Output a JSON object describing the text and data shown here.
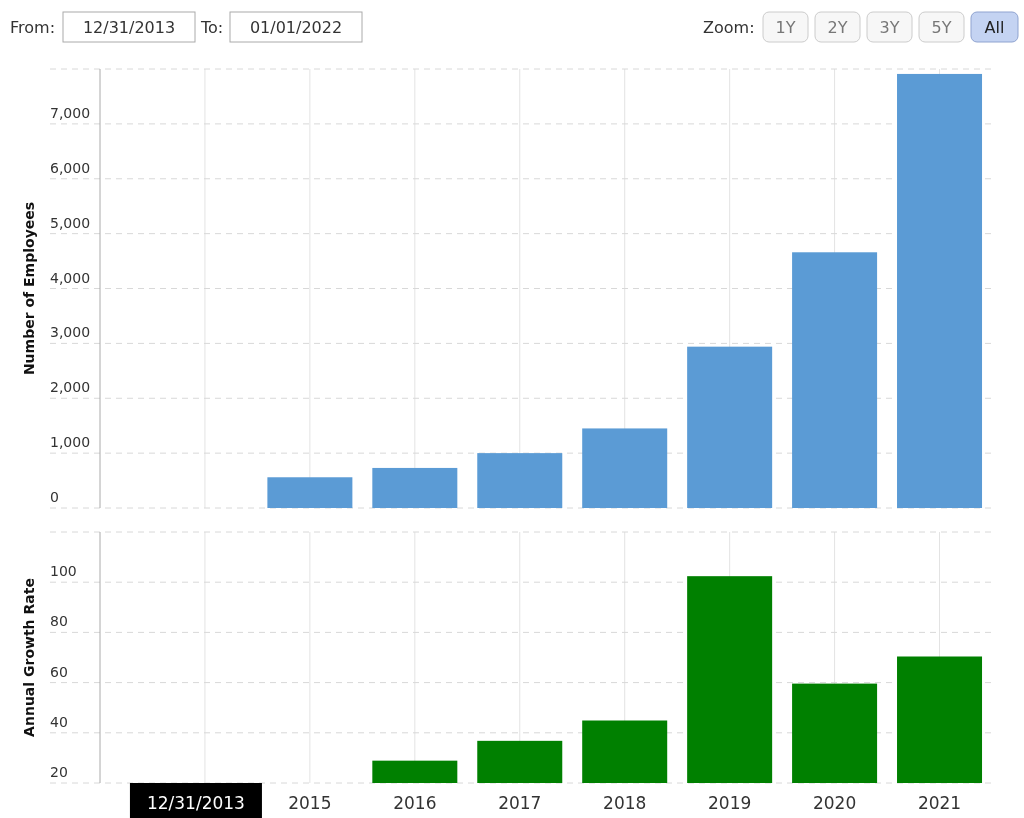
{
  "chart_data": [
    {
      "type": "bar",
      "ylabel": "Number of Employees",
      "x": [
        2015,
        2016,
        2017,
        2018,
        2019,
        2020,
        2021
      ],
      "values": [
        560,
        730,
        1000,
        1450,
        2940,
        4660,
        7910
      ],
      "color": "#5b9bd5",
      "xlim": [
        2013,
        2021.5
      ],
      "xticks": [
        2014,
        2015,
        2016,
        2017,
        2018,
        2019,
        2020,
        2021
      ],
      "ylim": [
        0,
        8000
      ],
      "yticks": [
        0,
        {
          "value": 1000,
          "label": "1,000"
        },
        {
          "value": 2000,
          "label": "2,000"
        },
        {
          "value": 3000,
          "label": "3,000"
        },
        {
          "value": 4000,
          "label": "4,000"
        },
        {
          "value": 5000,
          "label": "5,000"
        },
        {
          "value": 6000,
          "label": "6,000"
        },
        {
          "value": 7000,
          "label": "7,000"
        },
        {
          "value": 8000,
          "label": null
        }
      ],
      "grid": true,
      "tick_labels": "y",
      "annotations": [
        "From:",
        "12/31/2013",
        "To:",
        "01/01/2022",
        "Zoom:",
        "1Y",
        "2Y",
        "3Y",
        "5Y",
        "All"
      ]
    },
    {
      "type": "bar",
      "ylabel": "Annual Growth Rate",
      "x": [
        2016,
        2017,
        2018,
        2019,
        2020,
        2021
      ],
      "values": [
        28.9,
        36.8,
        44.9,
        102.4,
        59.6,
        70.4
      ],
      "color": "#008000",
      "xlim": [
        2013,
        2021.5
      ],
      "xticks": [
        {
          "value": 2014,
          "label": "12/31/2013"
        },
        2015,
        2016,
        2017,
        2018,
        2019,
        2020,
        2021
      ],
      "ylim": [
        20,
        120
      ],
      "yticks": [
        20,
        40,
        60,
        80,
        100,
        {
          "value": 120,
          "label": null
        }
      ],
      "grid": true
    }
  ]
}
